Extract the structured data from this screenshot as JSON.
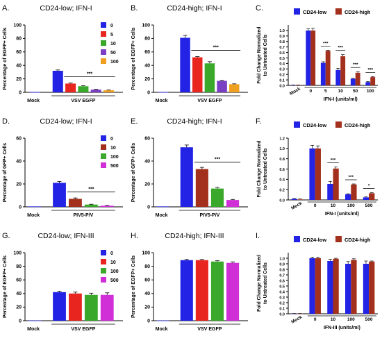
{
  "colors": {
    "blue": "#2323e6",
    "red": "#e8261f",
    "brown": "#a3301c",
    "green": "#3aa82b",
    "purple": "#7b3fc4",
    "orange": "#f0a020",
    "magenta": "#d02fd8",
    "axis": "#000000",
    "bar_label": "#ffffff"
  },
  "chart_data": [
    {
      "panel": "A.",
      "type": "bar",
      "title": "CD24-low; IFN-I",
      "ylabel": "Percentage of EGFP+ Cells",
      "xlabel": "",
      "ylim": [
        0,
        100
      ],
      "yticks": [
        0,
        20,
        40,
        60,
        80,
        100
      ],
      "categories": [
        "Mock",
        "VSV EGFP"
      ],
      "legend": [
        "0",
        "5",
        "10",
        "50",
        "100"
      ],
      "legend_position": "top-right",
      "series": [
        {
          "name": "0",
          "color": "blue",
          "values": [
            0.3,
            32
          ],
          "errors": [
            0.3,
            1.2
          ]
        },
        {
          "name": "5",
          "color": "red",
          "values": [
            null,
            13
          ],
          "errors": [
            null,
            0.8
          ]
        },
        {
          "name": "10",
          "color": "green",
          "values": [
            null,
            9
          ],
          "errors": [
            null,
            0.8
          ]
        },
        {
          "name": "50",
          "color": "purple",
          "values": [
            null,
            4
          ],
          "errors": [
            null,
            0.5
          ]
        },
        {
          "name": "100",
          "color": "orange",
          "values": [
            null,
            3
          ],
          "errors": [
            null,
            0.4
          ]
        }
      ],
      "significance": "***"
    },
    {
      "panel": "B.",
      "type": "bar",
      "title": "CD24-high; IFN-I",
      "ylabel": "Percentage of EGFP+ Cells",
      "xlabel": "",
      "ylim": [
        0,
        100
      ],
      "yticks": [
        0,
        20,
        40,
        60,
        80,
        100
      ],
      "categories": [
        "Mock",
        "VSV EGFP"
      ],
      "legend": [],
      "series": [
        {
          "name": "0",
          "color": "blue",
          "values": [
            0.3,
            81
          ],
          "errors": [
            0.3,
            3.5
          ]
        },
        {
          "name": "5",
          "color": "red",
          "values": [
            null,
            52
          ],
          "errors": [
            null,
            1
          ]
        },
        {
          "name": "10",
          "color": "green",
          "values": [
            null,
            43
          ],
          "errors": [
            null,
            2.5
          ]
        },
        {
          "name": "50",
          "color": "purple",
          "values": [
            null,
            17
          ],
          "errors": [
            null,
            0.8
          ]
        },
        {
          "name": "100",
          "color": "orange",
          "values": [
            null,
            12
          ],
          "errors": [
            null,
            0.6
          ]
        }
      ],
      "significance": "***"
    },
    {
      "panel": "C.",
      "type": "bar",
      "title": "",
      "ylabel": "Fold Change Normalized to Untreated Cells",
      "xlabel": "IFN-I (units/ml)",
      "ylim": [
        0,
        1.1
      ],
      "yticks": [
        0.0,
        0.1,
        0.2,
        0.3,
        0.4,
        0.5,
        0.6,
        0.7,
        0.8,
        0.9,
        1.0
      ],
      "categories": [
        "Mock",
        "0",
        "5",
        "10",
        "50",
        "100"
      ],
      "legend": [
        "CD24-low",
        "CD24-high"
      ],
      "legend_position": "top",
      "series": [
        {
          "name": "CD24-low",
          "color": "blue",
          "values": [
            0.005,
            1.0,
            0.41,
            0.28,
            0.12,
            0.06
          ],
          "errors": [
            0.003,
            0.03,
            0.02,
            0.03,
            0.01,
            0.01
          ]
        },
        {
          "name": "CD24-high",
          "color": "brown",
          "values": [
            0.005,
            1.0,
            0.63,
            0.53,
            0.23,
            0.15
          ],
          "errors": [
            0.003,
            0.04,
            0.01,
            0.03,
            0.02,
            0.01
          ]
        }
      ],
      "significance_labels": [
        "***",
        "***",
        "***",
        "***"
      ]
    },
    {
      "panel": "D.",
      "type": "bar",
      "title": "CD24-low; IFN-I",
      "ylabel": "Percentage of GFP+ Cells",
      "xlabel": "",
      "ylim": [
        0,
        60
      ],
      "yticks": [
        0,
        20,
        40,
        60
      ],
      "categories": [
        "Mock",
        "PIV5-P/V"
      ],
      "legend": [
        "0",
        "10",
        "100",
        "500"
      ],
      "legend_position": "top-right",
      "series": [
        {
          "name": "0",
          "color": "blue",
          "values": [
            0.4,
            21
          ],
          "errors": [
            0.3,
            1.2
          ]
        },
        {
          "name": "10",
          "color": "brown",
          "values": [
            null,
            7
          ],
          "errors": [
            null,
            0.8
          ]
        },
        {
          "name": "100",
          "color": "green",
          "values": [
            null,
            2
          ],
          "errors": [
            null,
            0.3
          ]
        },
        {
          "name": "500",
          "color": "magenta",
          "values": [
            null,
            1
          ],
          "errors": [
            null,
            0.2
          ]
        }
      ],
      "significance": "***"
    },
    {
      "panel": "E.",
      "type": "bar",
      "title": "CD24-high; IFN-I",
      "ylabel": "Percentage of GFP+ Cells",
      "xlabel": "",
      "ylim": [
        0,
        60
      ],
      "yticks": [
        0,
        20,
        40,
        60
      ],
      "categories": [
        "Mock",
        "PIV5-P/V"
      ],
      "legend": [],
      "series": [
        {
          "name": "0",
          "color": "blue",
          "values": [
            0.4,
            52
          ],
          "errors": [
            0.4,
            2
          ]
        },
        {
          "name": "10",
          "color": "brown",
          "values": [
            null,
            33
          ],
          "errors": [
            null,
            1.5
          ]
        },
        {
          "name": "100",
          "color": "green",
          "values": [
            null,
            16
          ],
          "errors": [
            null,
            1
          ]
        },
        {
          "name": "500",
          "color": "magenta",
          "values": [
            null,
            6
          ],
          "errors": [
            null,
            0.5
          ]
        }
      ],
      "significance": "***"
    },
    {
      "panel": "F.",
      "type": "bar",
      "title": "",
      "ylabel": "Fold Change Normalized to Untreated Cells",
      "xlabel": "IFN-I (units/ml)",
      "ylim": [
        0,
        1.2
      ],
      "yticks": [
        0.0,
        0.2,
        0.4,
        0.6,
        0.8,
        1.0,
        1.2
      ],
      "categories": [
        "Mock",
        "0",
        "10",
        "100",
        "500"
      ],
      "legend": [
        "CD24-low",
        "CD24-high"
      ],
      "legend_position": "top",
      "series": [
        {
          "name": "CD24-low",
          "color": "blue",
          "values": [
            0.02,
            1.0,
            0.31,
            0.11,
            0.05
          ],
          "errors": [
            0.01,
            0.06,
            0.05,
            0.01,
            0.01
          ]
        },
        {
          "name": "CD24-high",
          "color": "brown",
          "values": [
            0.01,
            1.0,
            0.61,
            0.3,
            0.13
          ],
          "errors": [
            0.01,
            0.05,
            0.03,
            0.01,
            0.01
          ]
        }
      ],
      "significance_labels": [
        "***",
        "***",
        "*"
      ]
    },
    {
      "panel": "G.",
      "type": "bar",
      "title": "CD24-low; IFN-III",
      "ylabel": "Percentage of EGFP+ Cells",
      "xlabel": "",
      "ylim": [
        0,
        100
      ],
      "yticks": [
        0,
        20,
        40,
        60,
        80,
        100
      ],
      "categories": [
        "Mock",
        "VSV EGFP"
      ],
      "legend": [
        "0",
        "10",
        "100",
        "500"
      ],
      "legend_position": "top-right",
      "series": [
        {
          "name": "0",
          "color": "blue",
          "values": [
            0.3,
            42
          ],
          "errors": [
            0.2,
            1.5
          ]
        },
        {
          "name": "10",
          "color": "red",
          "values": [
            null,
            40
          ],
          "errors": [
            null,
            2
          ]
        },
        {
          "name": "100",
          "color": "green",
          "values": [
            null,
            38
          ],
          "errors": [
            null,
            2.5
          ]
        },
        {
          "name": "500",
          "color": "magenta",
          "values": [
            null,
            38
          ],
          "errors": [
            null,
            3
          ]
        }
      ]
    },
    {
      "panel": "H.",
      "type": "bar",
      "title": "CD24-high; IFN-III",
      "ylabel": "Percentage of EGFP+ Cells",
      "xlabel": "",
      "ylim": [
        0,
        100
      ],
      "yticks": [
        0,
        20,
        40,
        60,
        80,
        100
      ],
      "categories": [
        "Mock",
        "VSV EGFP"
      ],
      "legend": [],
      "series": [
        {
          "name": "0",
          "color": "blue",
          "values": [
            0.3,
            89
          ],
          "errors": [
            0.2,
            1
          ]
        },
        {
          "name": "10",
          "color": "red",
          "values": [
            null,
            89
          ],
          "errors": [
            null,
            1
          ]
        },
        {
          "name": "100",
          "color": "green",
          "values": [
            null,
            87
          ],
          "errors": [
            null,
            1.2
          ]
        },
        {
          "name": "500",
          "color": "magenta",
          "values": [
            null,
            85
          ],
          "errors": [
            null,
            1.5
          ]
        }
      ]
    },
    {
      "panel": "I.",
      "type": "bar",
      "title": "",
      "ylabel": "Fold Change Normalized to Untreated Cells",
      "xlabel": "IFN-III (units/ml)",
      "ylim": [
        0,
        1.1
      ],
      "yticks": [
        0.0,
        0.1,
        0.2,
        0.3,
        0.4,
        0.5,
        0.6,
        0.7,
        0.8,
        0.9,
        1.0
      ],
      "categories": [
        "Mock",
        "0",
        "10",
        "100",
        "500"
      ],
      "legend": [
        "CD24-low",
        "CD24-high"
      ],
      "legend_position": "top",
      "series": [
        {
          "name": "CD24-low",
          "color": "blue",
          "values": [
            0.003,
            1.0,
            0.95,
            0.9,
            0.9
          ],
          "errors": [
            0.002,
            0.02,
            0.03,
            0.04,
            0.05
          ]
        },
        {
          "name": "CD24-high",
          "color": "brown",
          "values": [
            0.003,
            1.0,
            0.99,
            0.97,
            0.94
          ],
          "errors": [
            0.002,
            0.02,
            0.01,
            0.02,
            0.01
          ]
        }
      ]
    }
  ]
}
